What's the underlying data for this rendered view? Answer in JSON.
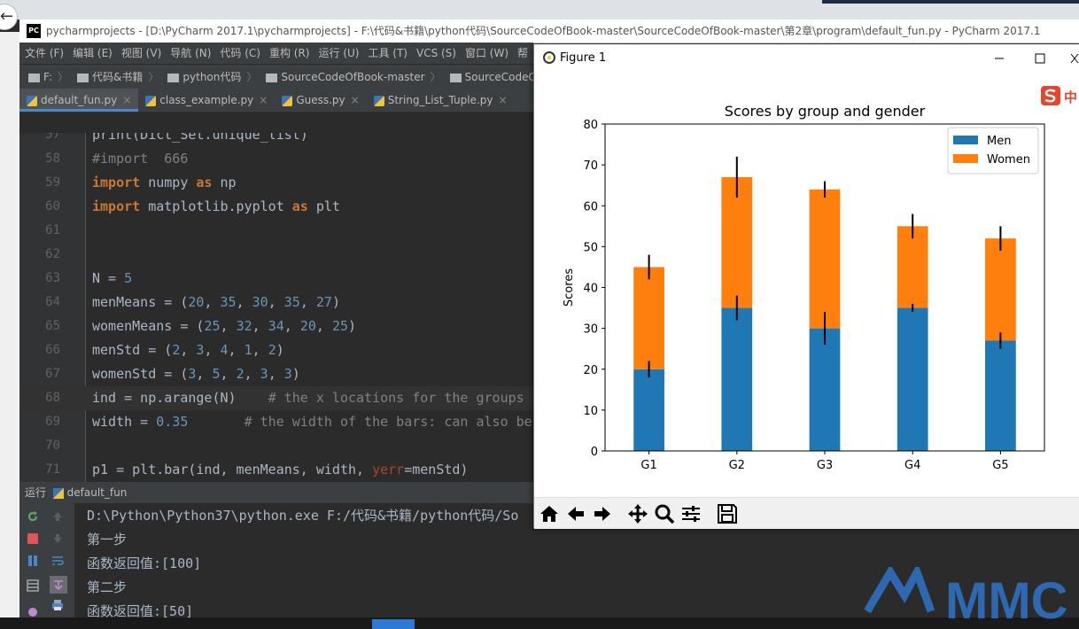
{
  "pycharm": {
    "title": "pycharmprojects - [D:\\PyCharm 2017.1\\pycharmprojects] - F:\\代码&书籍\\python代码\\SourceCodeOfBook-master\\SourceCodeOfBook-master\\第2章\\program\\default_fun.py - PyCharm 2017.1",
    "logo": "PC",
    "menu": [
      "文件 (F)",
      "编辑 (E)",
      "视图 (V)",
      "导航 (N)",
      "代码 (C)",
      "重构 (R)",
      "运行 (U)",
      "工具 (T)",
      "VCS (S)",
      "窗口 (W)",
      "帮"
    ],
    "breadcrumb": [
      "F:",
      "代码&书籍",
      "python代码",
      "SourceCodeOfBook-master",
      "SourceCodeOfBook-m"
    ],
    "tabs": [
      "default_fun.py",
      "class_example.py",
      "Guess.py",
      "String_List_Tuple.py"
    ],
    "run_label": "运行",
    "run_config": "default_fun",
    "output": [
      "D:\\Python\\Python37\\python.exe F:/代码&书籍/python代码/So",
      "第一步",
      "函数返回值:[100]",
      "第二步",
      "函数返回值:[50]"
    ]
  },
  "editor_lines": [
    {
      "n": "57",
      "parts": [
        {
          "t": "print(Dict_Set.unique_list)",
          "c": ""
        }
      ]
    },
    {
      "n": "58",
      "parts": [
        {
          "t": "#import  666",
          "c": "cm"
        }
      ]
    },
    {
      "n": "59",
      "parts": [
        {
          "t": "import",
          "c": "kw"
        },
        {
          "t": " numpy ",
          "c": ""
        },
        {
          "t": "as",
          "c": "kw"
        },
        {
          "t": " np",
          "c": ""
        }
      ]
    },
    {
      "n": "60",
      "parts": [
        {
          "t": "import",
          "c": "kw"
        },
        {
          "t": " matplotlib.pyplot ",
          "c": ""
        },
        {
          "t": "as",
          "c": "kw"
        },
        {
          "t": " plt",
          "c": ""
        }
      ]
    },
    {
      "n": "61",
      "parts": []
    },
    {
      "n": "62",
      "parts": []
    },
    {
      "n": "63",
      "parts": [
        {
          "t": "N = ",
          "c": ""
        },
        {
          "t": "5",
          "c": "num"
        }
      ]
    },
    {
      "n": "64",
      "parts": [
        {
          "t": "menMeans = (",
          "c": ""
        },
        {
          "t": "20",
          "c": "num"
        },
        {
          "t": ", ",
          "c": ""
        },
        {
          "t": "35",
          "c": "num"
        },
        {
          "t": ", ",
          "c": ""
        },
        {
          "t": "30",
          "c": "num"
        },
        {
          "t": ", ",
          "c": ""
        },
        {
          "t": "35",
          "c": "num"
        },
        {
          "t": ", ",
          "c": ""
        },
        {
          "t": "27",
          "c": "num"
        },
        {
          "t": ")",
          "c": ""
        }
      ]
    },
    {
      "n": "65",
      "parts": [
        {
          "t": "womenMeans = (",
          "c": ""
        },
        {
          "t": "25",
          "c": "num"
        },
        {
          "t": ", ",
          "c": ""
        },
        {
          "t": "32",
          "c": "num"
        },
        {
          "t": ", ",
          "c": ""
        },
        {
          "t": "34",
          "c": "num"
        },
        {
          "t": ", ",
          "c": ""
        },
        {
          "t": "20",
          "c": "num"
        },
        {
          "t": ", ",
          "c": ""
        },
        {
          "t": "25",
          "c": "num"
        },
        {
          "t": ")",
          "c": ""
        }
      ]
    },
    {
      "n": "66",
      "parts": [
        {
          "t": "menStd = (",
          "c": ""
        },
        {
          "t": "2",
          "c": "num"
        },
        {
          "t": ", ",
          "c": ""
        },
        {
          "t": "3",
          "c": "num"
        },
        {
          "t": ", ",
          "c": ""
        },
        {
          "t": "4",
          "c": "num"
        },
        {
          "t": ", ",
          "c": ""
        },
        {
          "t": "1",
          "c": "num"
        },
        {
          "t": ", ",
          "c": ""
        },
        {
          "t": "2",
          "c": "num"
        },
        {
          "t": ")",
          "c": ""
        }
      ]
    },
    {
      "n": "67",
      "parts": [
        {
          "t": "womenStd = (",
          "c": ""
        },
        {
          "t": "3",
          "c": "num"
        },
        {
          "t": ", ",
          "c": ""
        },
        {
          "t": "5",
          "c": "num"
        },
        {
          "t": ", ",
          "c": ""
        },
        {
          "t": "2",
          "c": "num"
        },
        {
          "t": ", ",
          "c": ""
        },
        {
          "t": "3",
          "c": "num"
        },
        {
          "t": ", ",
          "c": ""
        },
        {
          "t": "3",
          "c": "num"
        },
        {
          "t": ")",
          "c": ""
        }
      ]
    },
    {
      "n": "68",
      "hl": true,
      "parts": [
        {
          "t": "ind = np.arange(N)    ",
          "c": ""
        },
        {
          "t": "# the x locations for the groups",
          "c": "cm"
        }
      ]
    },
    {
      "n": "69",
      "parts": [
        {
          "t": "width = ",
          "c": ""
        },
        {
          "t": "0.35",
          "c": "num"
        },
        {
          "t": "       ",
          "c": ""
        },
        {
          "t": "# the width of the bars: can also be",
          "c": "cm"
        }
      ]
    },
    {
      "n": "70",
      "parts": []
    },
    {
      "n": "71",
      "parts": [
        {
          "t": "p1 = plt.bar(ind, menMeans, width, ",
          "c": ""
        },
        {
          "t": "yerr",
          "c": "kwarg"
        },
        {
          "t": "=menStd)",
          "c": ""
        }
      ]
    }
  ],
  "figure": {
    "window_title": "Figure 1",
    "sogou_label": "中",
    "toolbar": [
      "home-icon",
      "back-icon",
      "forward-icon",
      "pan-icon",
      "zoom-icon",
      "configure-icon",
      "save-icon"
    ]
  },
  "chart_data": {
    "type": "bar",
    "stacked": true,
    "title": "Scores by group and gender",
    "xlabel": "",
    "ylabel": "Scores",
    "categories": [
      "G1",
      "G2",
      "G3",
      "G4",
      "G5"
    ],
    "ylim": [
      0,
      80
    ],
    "yticks": [
      0,
      10,
      20,
      30,
      40,
      50,
      60,
      70,
      80
    ],
    "legend_position": "top-right",
    "grid": false,
    "series": [
      {
        "name": "Men",
        "values": [
          20,
          35,
          30,
          35,
          27
        ],
        "err": [
          2,
          3,
          4,
          1,
          2
        ],
        "color": "#1f77b4"
      },
      {
        "name": "Women",
        "values": [
          25,
          32,
          34,
          20,
          25
        ],
        "err": [
          3,
          5,
          2,
          3,
          3
        ],
        "color": "#ff7f0e"
      }
    ]
  },
  "watermark": "MMC"
}
